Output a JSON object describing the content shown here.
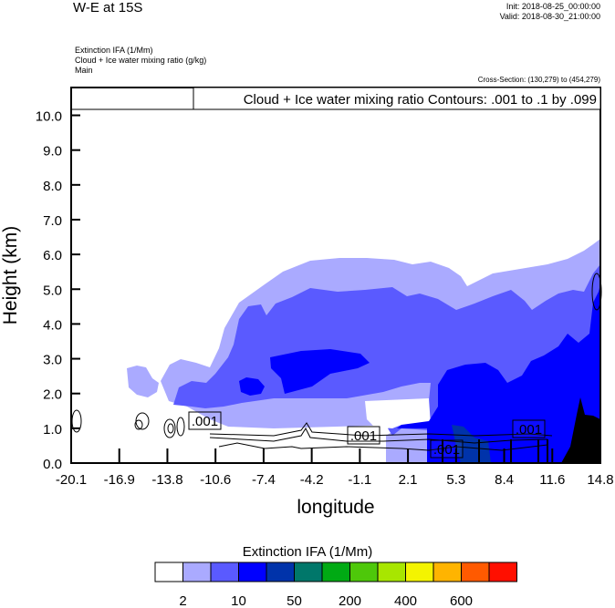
{
  "header": {
    "title": "W-E at 15S",
    "init": "Init: 2018-08-25_00:00:00",
    "valid": "Valid: 2018-08-30_21:00:00",
    "fields": [
      "Extinction IFA   (1/Mm)",
      "Cloud + Ice water mixing ratio   (g/kg)",
      "Main"
    ],
    "cross_section": "Cross-Section: (130,279) to (454,279)"
  },
  "chart_data": {
    "type": "heatmap",
    "title": "W-E at 15S",
    "contour_legend": "Cloud + Ice water mixing ratio Contours: .001 to .1 by .099",
    "xlabel": "longitude",
    "ylabel": "Height (km)",
    "xlim": [
      -20.1,
      14.8
    ],
    "ylim": [
      0,
      10.8
    ],
    "x_ticks": [
      "-20.1",
      "-16.9",
      "-13.8",
      "-10.6",
      "-7.4",
      "-4.2",
      "-1.1",
      "2.1",
      "5.3",
      "8.4",
      "11.6",
      "14.8"
    ],
    "y_ticks": [
      "0.0",
      "1.0",
      "2.0",
      "3.0",
      "4.0",
      "5.0",
      "6.0",
      "7.0",
      "8.0",
      "9.0",
      "10.0"
    ],
    "contour_labels": [
      ".001",
      ".001",
      ".001",
      ".001"
    ],
    "colorbar": {
      "title": "Extinction IFA  (1/Mm)",
      "colors": [
        "#ffffff",
        "#aaaaff",
        "#5a5aff",
        "#0000ff",
        "#0033aa",
        "#00776a",
        "#00aa14",
        "#4ec80a",
        "#a8e600",
        "#f4f400",
        "#ffb400",
        "#ff5a00",
        "#ff0f00"
      ],
      "labels": [
        "2",
        "10",
        "50",
        "200",
        "400",
        "600"
      ]
    }
  }
}
